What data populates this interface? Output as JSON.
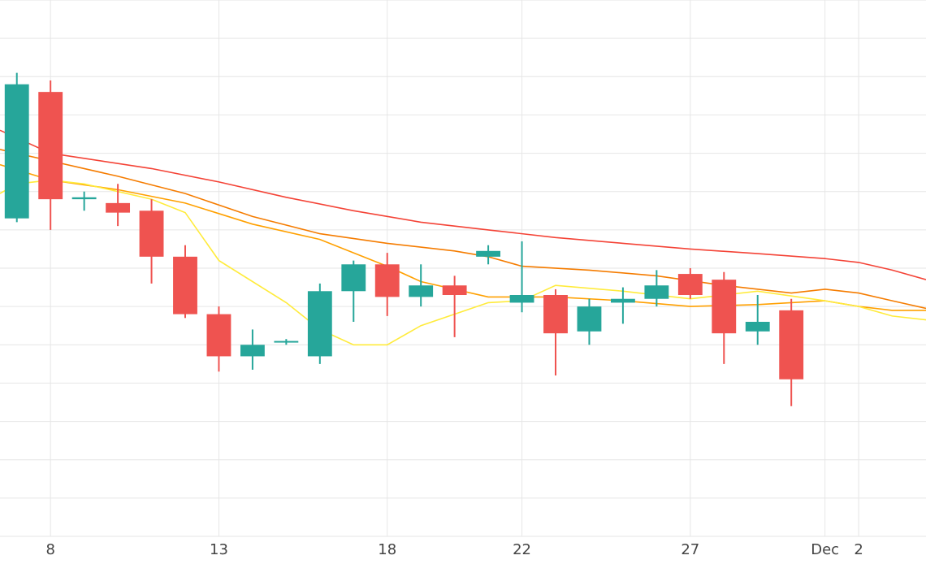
{
  "chart_data": {
    "type": "candlestick",
    "x_tick_labels": [
      {
        "date": "2024-11-08",
        "label": "8"
      },
      {
        "date": "2024-11-13",
        "label": "13"
      },
      {
        "date": "2024-11-18",
        "label": "18"
      },
      {
        "date": "2024-11-22",
        "label": "22"
      },
      {
        "date": "2024-11-27",
        "label": "27"
      },
      {
        "date": "2024-12-01",
        "label": "Dec"
      },
      {
        "date": "2024-12-02",
        "label": "2"
      }
    ],
    "xlim": [
      "2024-11-06T12:00",
      "2024-12-04"
    ],
    "ylim": [
      0,
      14
    ],
    "y_gridlines": [
      1,
      2,
      3,
      4,
      5,
      6,
      7,
      8,
      9,
      10,
      11,
      12,
      13,
      14
    ],
    "grid": true,
    "colors": {
      "increasing": "#26a69a",
      "decreasing": "#ef5350",
      "grid": "#e6e6e6",
      "tick_text": "#444444"
    },
    "candles": [
      {
        "date": "2024-11-07",
        "open": 8.3,
        "high": 12.1,
        "low": 8.2,
        "close": 11.8
      },
      {
        "date": "2024-11-08",
        "open": 11.6,
        "high": 11.9,
        "low": 8.0,
        "close": 8.8
      },
      {
        "date": "2024-11-09",
        "open": 8.8,
        "high": 9.0,
        "low": 8.5,
        "close": 8.85
      },
      {
        "date": "2024-11-10",
        "open": 8.7,
        "high": 9.2,
        "low": 8.1,
        "close": 8.45
      },
      {
        "date": "2024-11-11",
        "open": 8.5,
        "high": 8.8,
        "low": 6.6,
        "close": 7.3
      },
      {
        "date": "2024-11-12",
        "open": 7.3,
        "high": 7.6,
        "low": 5.7,
        "close": 5.8
      },
      {
        "date": "2024-11-13",
        "open": 5.8,
        "high": 6.0,
        "low": 4.3,
        "close": 4.7
      },
      {
        "date": "2024-11-14",
        "open": 4.7,
        "high": 5.4,
        "low": 4.35,
        "close": 5.0
      },
      {
        "date": "2024-11-15",
        "open": 5.1,
        "high": 5.15,
        "low": 5.0,
        "close": 5.1
      },
      {
        "date": "2024-11-16",
        "open": 4.7,
        "high": 6.6,
        "low": 4.5,
        "close": 6.4
      },
      {
        "date": "2024-11-17",
        "open": 6.4,
        "high": 7.2,
        "low": 5.6,
        "close": 7.1
      },
      {
        "date": "2024-11-18",
        "open": 7.1,
        "high": 7.4,
        "low": 5.75,
        "close": 6.25
      },
      {
        "date": "2024-11-19",
        "open": 6.25,
        "high": 7.1,
        "low": 6.0,
        "close": 6.55
      },
      {
        "date": "2024-11-20",
        "open": 6.55,
        "high": 6.8,
        "low": 5.2,
        "close": 6.3
      },
      {
        "date": "2024-11-21",
        "open": 7.3,
        "high": 7.6,
        "low": 7.1,
        "close": 7.45
      },
      {
        "date": "2024-11-22",
        "open": 6.1,
        "high": 7.7,
        "low": 5.85,
        "close": 6.3
      },
      {
        "date": "2024-11-23",
        "open": 6.3,
        "high": 6.45,
        "low": 4.2,
        "close": 5.3
      },
      {
        "date": "2024-11-24",
        "open": 5.35,
        "high": 6.2,
        "low": 5.0,
        "close": 6.0
      },
      {
        "date": "2024-11-25",
        "open": 6.1,
        "high": 6.5,
        "low": 5.55,
        "close": 6.2
      },
      {
        "date": "2024-11-26",
        "open": 6.2,
        "high": 6.95,
        "low": 6.0,
        "close": 6.55
      },
      {
        "date": "2024-11-27",
        "open": 6.85,
        "high": 7.0,
        "low": 6.2,
        "close": 6.3
      },
      {
        "date": "2024-11-28",
        "open": 6.7,
        "high": 6.9,
        "low": 4.5,
        "close": 5.3
      },
      {
        "date": "2024-11-29",
        "open": 5.35,
        "high": 6.3,
        "low": 5.0,
        "close": 5.6
      },
      {
        "date": "2024-11-30",
        "open": 5.9,
        "high": 6.2,
        "low": 3.4,
        "close": 4.1
      }
    ],
    "moving_averages": [
      {
        "color": "#f44336",
        "points": [
          [
            "2024-11-06T12:00",
            10.6
          ],
          [
            "2024-11-08",
            10.0
          ],
          [
            "2024-11-11",
            9.6
          ],
          [
            "2024-11-13",
            9.25
          ],
          [
            "2024-11-15",
            8.85
          ],
          [
            "2024-11-17",
            8.5
          ],
          [
            "2024-11-19",
            8.2
          ],
          [
            "2024-11-21",
            8.0
          ],
          [
            "2024-11-23",
            7.8
          ],
          [
            "2024-11-25",
            7.65
          ],
          [
            "2024-11-27",
            7.5
          ],
          [
            "2024-11-29",
            7.38
          ],
          [
            "2024-12-01",
            7.25
          ],
          [
            "2024-12-02",
            7.15
          ],
          [
            "2024-12-03",
            6.95
          ],
          [
            "2024-12-04",
            6.7
          ]
        ]
      },
      {
        "color": "#f57c00",
        "points": [
          [
            "2024-11-06T12:00",
            10.1
          ],
          [
            "2024-11-08",
            9.8
          ],
          [
            "2024-11-10",
            9.4
          ],
          [
            "2024-11-12",
            8.95
          ],
          [
            "2024-11-14",
            8.35
          ],
          [
            "2024-11-16",
            7.9
          ],
          [
            "2024-11-18",
            7.65
          ],
          [
            "2024-11-20",
            7.45
          ],
          [
            "2024-11-21",
            7.3
          ],
          [
            "2024-11-22",
            7.05
          ],
          [
            "2024-11-24",
            6.95
          ],
          [
            "2024-11-26",
            6.8
          ],
          [
            "2024-11-28",
            6.55
          ],
          [
            "2024-11-30",
            6.35
          ],
          [
            "2024-12-01",
            6.45
          ],
          [
            "2024-12-02",
            6.35
          ],
          [
            "2024-12-03",
            6.15
          ],
          [
            "2024-12-04",
            5.95
          ]
        ]
      },
      {
        "color": "#ffa000",
        "points": [
          [
            "2024-11-06T12:00",
            9.7
          ],
          [
            "2024-11-08",
            9.3
          ],
          [
            "2024-11-10",
            9.05
          ],
          [
            "2024-11-12",
            8.7
          ],
          [
            "2024-11-14",
            8.15
          ],
          [
            "2024-11-16",
            7.75
          ],
          [
            "2024-11-18",
            7.05
          ],
          [
            "2024-11-19",
            6.65
          ],
          [
            "2024-11-21",
            6.25
          ],
          [
            "2024-11-23",
            6.25
          ],
          [
            "2024-11-25",
            6.15
          ],
          [
            "2024-11-27",
            6.0
          ],
          [
            "2024-11-29",
            6.05
          ],
          [
            "2024-12-01",
            6.15
          ],
          [
            "2024-12-02",
            6.0
          ],
          [
            "2024-12-03",
            5.9
          ],
          [
            "2024-12-04",
            5.9
          ]
        ]
      },
      {
        "color": "#ffeb3b",
        "points": [
          [
            "2024-11-06T12:00",
            8.95
          ],
          [
            "2024-11-07",
            9.2
          ],
          [
            "2024-11-08",
            9.3
          ],
          [
            "2024-11-09",
            9.2
          ],
          [
            "2024-11-11",
            8.8
          ],
          [
            "2024-11-12",
            8.45
          ],
          [
            "2024-11-13",
            7.2
          ],
          [
            "2024-11-15",
            6.1
          ],
          [
            "2024-11-16",
            5.4
          ],
          [
            "2024-11-17",
            5.0
          ],
          [
            "2024-11-18",
            5.0
          ],
          [
            "2024-11-19",
            5.5
          ],
          [
            "2024-11-21",
            6.1
          ],
          [
            "2024-11-22",
            6.15
          ],
          [
            "2024-11-23",
            6.55
          ],
          [
            "2024-11-25",
            6.4
          ],
          [
            "2024-11-27",
            6.2
          ],
          [
            "2024-11-29",
            6.4
          ],
          [
            "2024-12-01",
            6.15
          ],
          [
            "2024-12-02",
            6.0
          ],
          [
            "2024-12-03",
            5.75
          ],
          [
            "2024-12-04",
            5.65
          ]
        ]
      }
    ]
  }
}
